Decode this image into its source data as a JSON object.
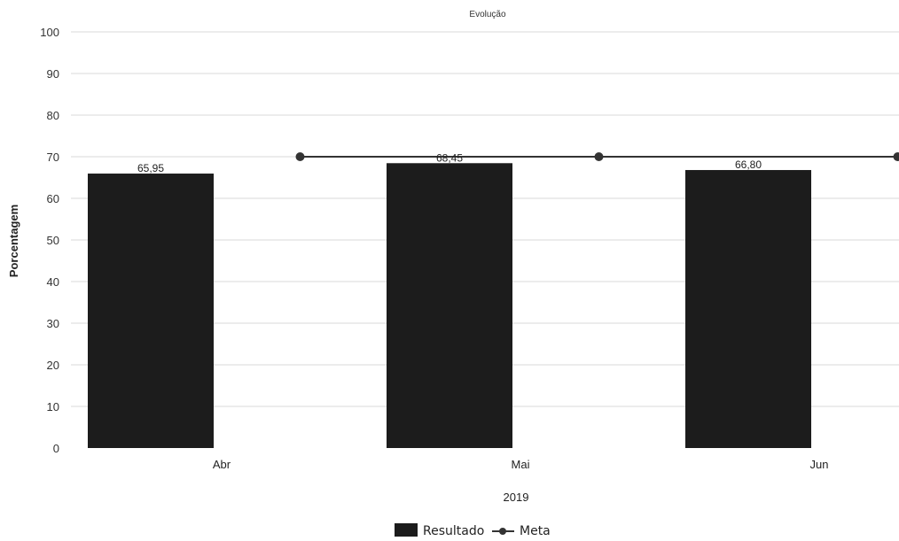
{
  "chart_data": {
    "type": "bar",
    "title": "Evolução",
    "ylabel": "Porcentagem",
    "xlabel": "2019",
    "categories": [
      "Abr",
      "Mai",
      "Jun"
    ],
    "ylim": [
      0,
      100
    ],
    "yticks": [
      0,
      10,
      20,
      30,
      40,
      50,
      60,
      70,
      80,
      90,
      100
    ],
    "grid": true,
    "legend": "bottom",
    "series": [
      {
        "name": "Resultado",
        "type": "bar",
        "color": "#1c1c1c",
        "values": [
          65.95,
          68.45,
          66.8
        ],
        "labels": [
          "65,95",
          "68,45",
          "66,80"
        ]
      },
      {
        "name": "Meta",
        "type": "line",
        "color": "#333333",
        "x": [
          1.5,
          2.5,
          3.5
        ],
        "values": [
          70,
          70,
          70
        ]
      }
    ]
  }
}
